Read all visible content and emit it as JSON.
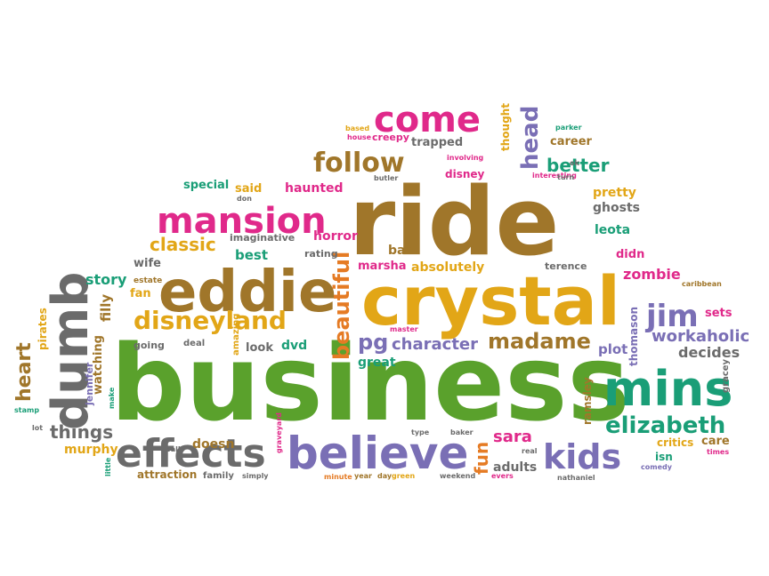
{
  "colors": {
    "olive": "#a0762a",
    "green": "#5aa12c",
    "gold": "#e2a617",
    "pink": "#e0298a",
    "purple": "#7a6fb5",
    "teal": "#1a9e77",
    "gray": "#6b6b6b",
    "orange": "#e57b24"
  },
  "words": [
    "business",
    "ride",
    "crystal",
    "eddie",
    "dumb",
    "believe",
    "mins",
    "effects",
    "mansion",
    "come",
    "follow",
    "disneyland",
    "kids",
    "jim",
    "elizabeth",
    "madame",
    "beautiful",
    "pg",
    "head",
    "better",
    "classic",
    "character",
    "workaholic",
    "heart",
    "things",
    "zombie",
    "sara",
    "decides",
    "absolutely",
    "story",
    "fun",
    "thomason",
    "watching",
    "filly",
    "pirates",
    "jennifer",
    "murphy",
    "adults",
    "critics",
    "plot",
    "great",
    "horror",
    "imaginative",
    "rating",
    "marsha",
    "terence",
    "best",
    "wife",
    "fan",
    "dvd",
    "look",
    "amazing",
    "going",
    "deal",
    "leota",
    "ghosts",
    "pretty",
    "disney",
    "trapped",
    "creepy",
    "career",
    "parker",
    "based",
    "house",
    "thought",
    "special",
    "said",
    "haunted",
    "don",
    "butler",
    "involving",
    "interesting",
    "turn",
    "bad",
    "didn",
    "estate",
    "master",
    "sets",
    "caribbean",
    "gracey",
    "ramsley",
    "care",
    "times",
    "comedy",
    "isn",
    "nathaniel",
    "evers",
    "weekend",
    "green",
    "day",
    "year",
    "minute",
    "simply",
    "family",
    "attraction",
    "graveyard",
    "doesn",
    "ball",
    "type",
    "baker",
    "real",
    "little",
    "make",
    "lot",
    "stamp",
    "ok"
  ]
}
